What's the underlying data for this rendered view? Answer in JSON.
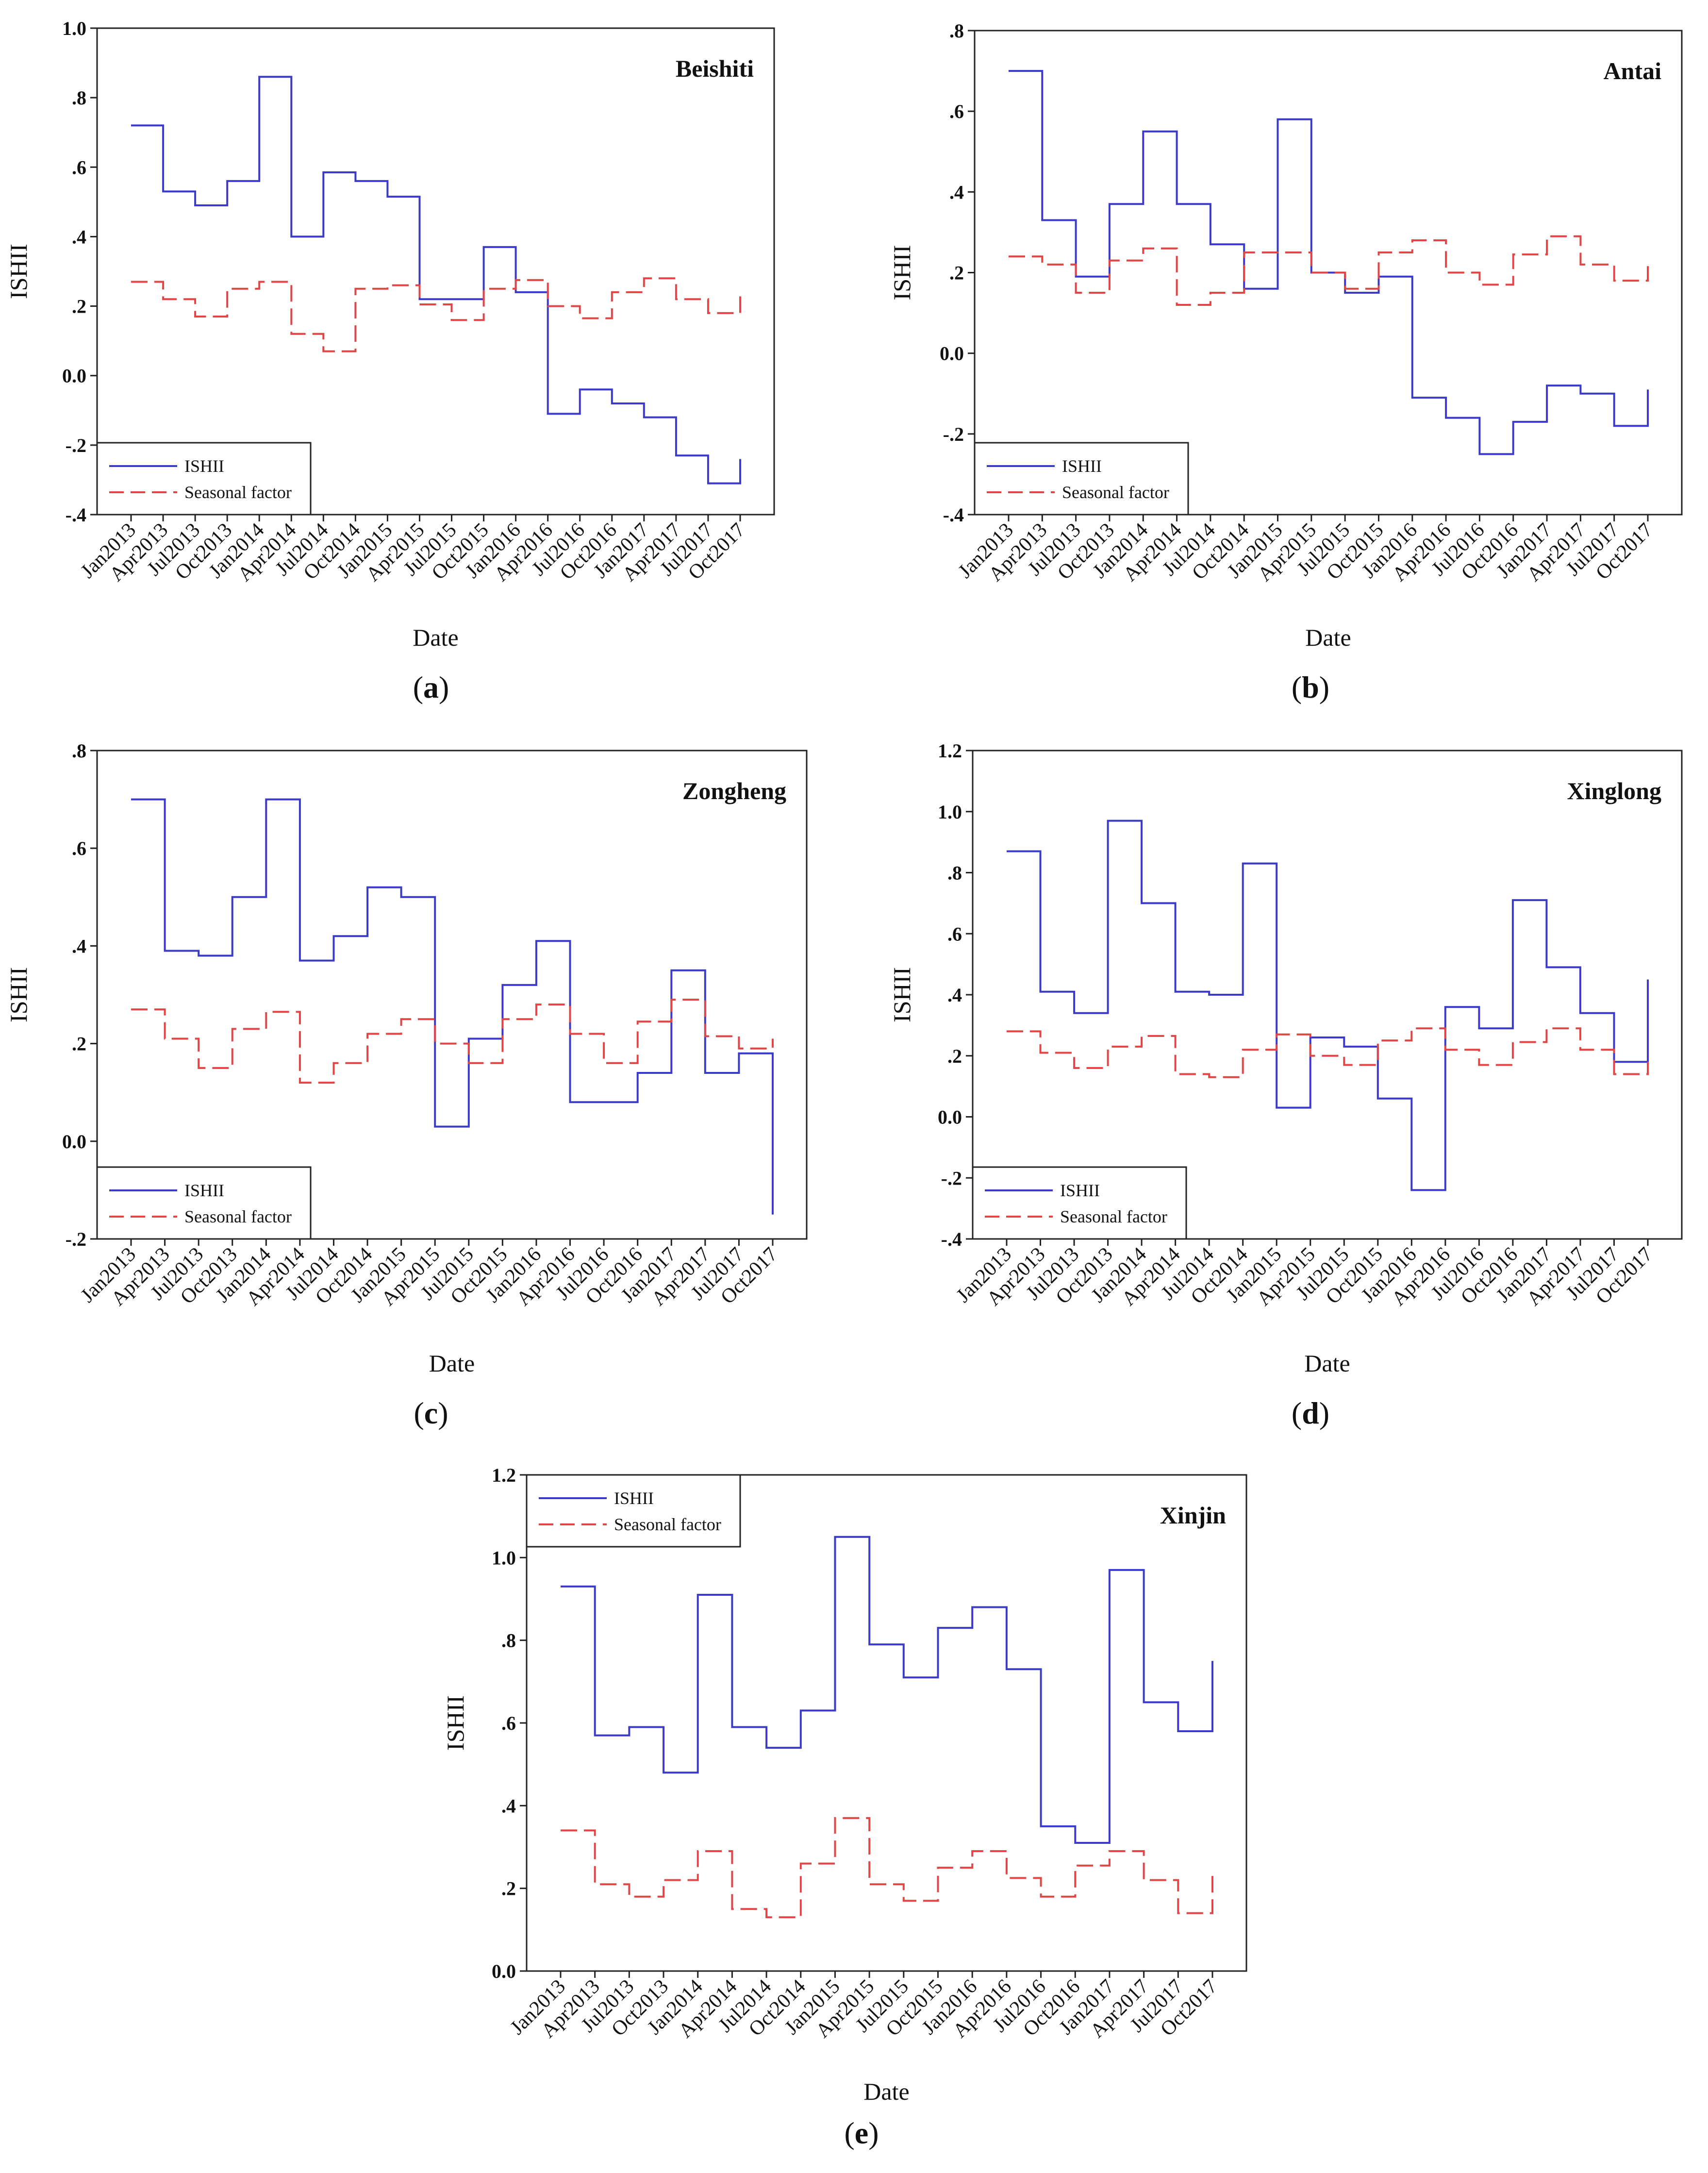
{
  "figure": {
    "legend_labels": [
      "ISHII",
      "Seasonal factor"
    ],
    "colors": {
      "ishii": "#3b3bc8",
      "seasonal": "#e04646",
      "axis": "#222222"
    }
  },
  "chart_data": [
    {
      "type": "line",
      "step": true,
      "panel": "a",
      "title": "Beishiti",
      "xlabel": "Date",
      "ylabel": "ISHII",
      "caption_open": "(",
      "caption_letter": "a",
      "caption_close": ")",
      "legend_position": "bottom-left",
      "ylim": [
        -0.4,
        1.0
      ],
      "yticks": [
        -0.4,
        -0.2,
        0.0,
        0.2,
        0.4,
        0.6,
        0.8,
        1.0
      ],
      "ytick_labels": [
        "-.4",
        "-.2",
        "0.0",
        ".2",
        ".4",
        ".6",
        ".8",
        "1.0"
      ],
      "x_tick_labels": [
        "Jan2013",
        "Apr2013",
        "Jul2013",
        "Oct2013",
        "Jan2014",
        "Apr2014",
        "Jul2014",
        "Oct2014",
        "Jan2015",
        "Apr2015",
        "Jul2015",
        "Oct2015",
        "Jan2016",
        "Apr2016",
        "Jul2016",
        "Oct2016",
        "Jan2017",
        "Apr2017",
        "Jul2017",
        "Oct2017"
      ],
      "series": [
        {
          "name": "ISHII",
          "values": [
            0.72,
            0.53,
            0.49,
            0.56,
            0.86,
            0.4,
            0.585,
            0.56,
            0.515,
            0.22,
            0.22,
            0.37,
            0.24,
            -0.11,
            -0.04,
            -0.08,
            -0.12,
            -0.23,
            -0.31,
            -0.24
          ]
        },
        {
          "name": "Seasonal factor",
          "values": [
            0.27,
            0.22,
            0.17,
            0.25,
            0.27,
            0.12,
            0.07,
            0.25,
            0.26,
            0.205,
            0.16,
            0.25,
            0.275,
            0.2,
            0.165,
            0.24,
            0.28,
            0.22,
            0.18,
            0.23
          ]
        }
      ]
    },
    {
      "type": "line",
      "step": true,
      "panel": "b",
      "title": "Antai",
      "xlabel": "Date",
      "ylabel": "ISHII",
      "caption_open": "(",
      "caption_letter": "b",
      "caption_close": ")",
      "legend_position": "bottom-left",
      "ylim": [
        -0.4,
        0.8
      ],
      "yticks": [
        -0.4,
        -0.2,
        0.0,
        0.2,
        0.4,
        0.6,
        0.8
      ],
      "ytick_labels": [
        "-.4",
        "-.2",
        "0.0",
        ".2",
        ".4",
        ".6",
        ".8"
      ],
      "x_tick_labels": [
        "Jan2013",
        "Apr2013",
        "Jul2013",
        "Oct2013",
        "Jan2014",
        "Apr2014",
        "Jul2014",
        "Oct2014",
        "Jan2015",
        "Apr2015",
        "Jul2015",
        "Oct2015",
        "Jan2016",
        "Apr2016",
        "Jul2016",
        "Oct2016",
        "Jan2017",
        "Apr2017",
        "Jul2017",
        "Oct2017"
      ],
      "series": [
        {
          "name": "ISHII",
          "values": [
            0.7,
            0.33,
            0.19,
            0.37,
            0.55,
            0.37,
            0.27,
            0.16,
            0.58,
            0.2,
            0.15,
            0.19,
            -0.11,
            -0.16,
            -0.25,
            -0.17,
            -0.08,
            -0.1,
            -0.18,
            -0.09
          ]
        },
        {
          "name": "Seasonal factor",
          "values": [
            0.24,
            0.22,
            0.15,
            0.23,
            0.26,
            0.12,
            0.15,
            0.25,
            0.25,
            0.2,
            0.16,
            0.25,
            0.28,
            0.2,
            0.17,
            0.245,
            0.29,
            0.22,
            0.18,
            0.23
          ]
        }
      ]
    },
    {
      "type": "line",
      "step": true,
      "panel": "c",
      "title": "Zongheng",
      "xlabel": "Date",
      "ylabel": "ISHII",
      "caption_open": "(",
      "caption_letter": "c",
      "caption_close": ")",
      "legend_position": "bottom-left",
      "ylim": [
        -0.2,
        0.8
      ],
      "yticks": [
        -0.2,
        0.0,
        0.2,
        0.4,
        0.6,
        0.8
      ],
      "ytick_labels": [
        "-.2",
        "0.0",
        ".2",
        ".4",
        ".6",
        ".8"
      ],
      "x_tick_labels": [
        "Jan2013",
        "Apr2013",
        "Jul2013",
        "Oct2013",
        "Jan2014",
        "Apr2014",
        "Jul2014",
        "Oct2014",
        "Jan2015",
        "Apr2015",
        "Jul2015",
        "Oct2015",
        "Jan2016",
        "Apr2016",
        "Jul2016",
        "Oct2016",
        "Jan2017",
        "Apr2017",
        "Jul2017",
        "Oct2017"
      ],
      "series": [
        {
          "name": "ISHII",
          "values": [
            0.7,
            0.39,
            0.38,
            0.5,
            0.7,
            0.37,
            0.42,
            0.52,
            0.5,
            0.03,
            0.21,
            0.32,
            0.41,
            0.08,
            0.08,
            0.14,
            0.35,
            0.14,
            0.18,
            -0.15
          ]
        },
        {
          "name": "Seasonal factor",
          "values": [
            0.27,
            0.21,
            0.15,
            0.23,
            0.265,
            0.12,
            0.16,
            0.22,
            0.25,
            0.2,
            0.16,
            0.25,
            0.28,
            0.22,
            0.16,
            0.245,
            0.29,
            0.215,
            0.19,
            0.21
          ]
        }
      ]
    },
    {
      "type": "line",
      "step": true,
      "panel": "d",
      "title": "Xinglong",
      "xlabel": "Date",
      "ylabel": "ISHII",
      "caption_open": "(",
      "caption_letter": "d",
      "caption_close": ")",
      "legend_position": "bottom-left",
      "ylim": [
        -0.4,
        1.2
      ],
      "yticks": [
        -0.4,
        -0.2,
        0.0,
        0.2,
        0.4,
        0.6,
        0.8,
        1.0,
        1.2
      ],
      "ytick_labels": [
        "-.4",
        "-.2",
        "0.0",
        ".2",
        ".4",
        ".6",
        ".8",
        "1.0",
        "1.2"
      ],
      "x_tick_labels": [
        "Jan2013",
        "Apr2013",
        "Jul2013",
        "Oct2013",
        "Jan2014",
        "Apr2014",
        "Jul2014",
        "Oct2014",
        "Jan2015",
        "Apr2015",
        "Jul2015",
        "Oct2015",
        "Jan2016",
        "Apr2016",
        "Jul2016",
        "Oct2016",
        "Jan2017",
        "Apr2017",
        "Jul2017",
        "Oct2017"
      ],
      "series": [
        {
          "name": "ISHII",
          "values": [
            0.87,
            0.41,
            0.34,
            0.97,
            0.7,
            0.41,
            0.4,
            0.83,
            0.03,
            0.26,
            0.23,
            0.06,
            -0.24,
            0.36,
            0.29,
            0.71,
            0.49,
            0.34,
            0.18,
            0.45
          ]
        },
        {
          "name": "Seasonal factor",
          "values": [
            0.28,
            0.21,
            0.16,
            0.23,
            0.265,
            0.14,
            0.13,
            0.22,
            0.27,
            0.2,
            0.17,
            0.25,
            0.29,
            0.22,
            0.17,
            0.245,
            0.29,
            0.22,
            0.14,
            0.18
          ]
        }
      ]
    },
    {
      "type": "line",
      "step": true,
      "panel": "e",
      "title": "Xinjin",
      "xlabel": "Date",
      "ylabel": "ISHII",
      "caption_open": "(",
      "caption_letter": "e",
      "caption_close": ")",
      "legend_position": "top-left",
      "ylim": [
        0.0,
        1.2
      ],
      "yticks": [
        0.0,
        0.2,
        0.4,
        0.6,
        0.8,
        1.0,
        1.2
      ],
      "ytick_labels": [
        "0.0",
        ".2",
        ".4",
        ".6",
        ".8",
        "1.0",
        "1.2"
      ],
      "x_tick_labels": [
        "Jan2013",
        "Apr2013",
        "Jul2013",
        "Oct2013",
        "Jan2014",
        "Apr2014",
        "Jul2014",
        "Oct2014",
        "Jan2015",
        "Apr2015",
        "Jul2015",
        "Oct2015",
        "Jan2016",
        "Apr2016",
        "Jul2016",
        "Oct2016",
        "Jan2017",
        "Apr2017",
        "Jul2017",
        "Oct2017"
      ],
      "series": [
        {
          "name": "ISHII",
          "values": [
            0.93,
            0.57,
            0.59,
            0.48,
            0.91,
            0.59,
            0.54,
            0.63,
            1.05,
            0.79,
            0.71,
            0.83,
            0.88,
            0.73,
            0.35,
            0.31,
            0.97,
            0.65,
            0.58,
            0.75
          ]
        },
        {
          "name": "Seasonal factor",
          "values": [
            0.34,
            0.21,
            0.18,
            0.22,
            0.29,
            0.15,
            0.13,
            0.26,
            0.37,
            0.21,
            0.17,
            0.25,
            0.29,
            0.225,
            0.18,
            0.255,
            0.29,
            0.22,
            0.14,
            0.24
          ]
        }
      ]
    }
  ]
}
